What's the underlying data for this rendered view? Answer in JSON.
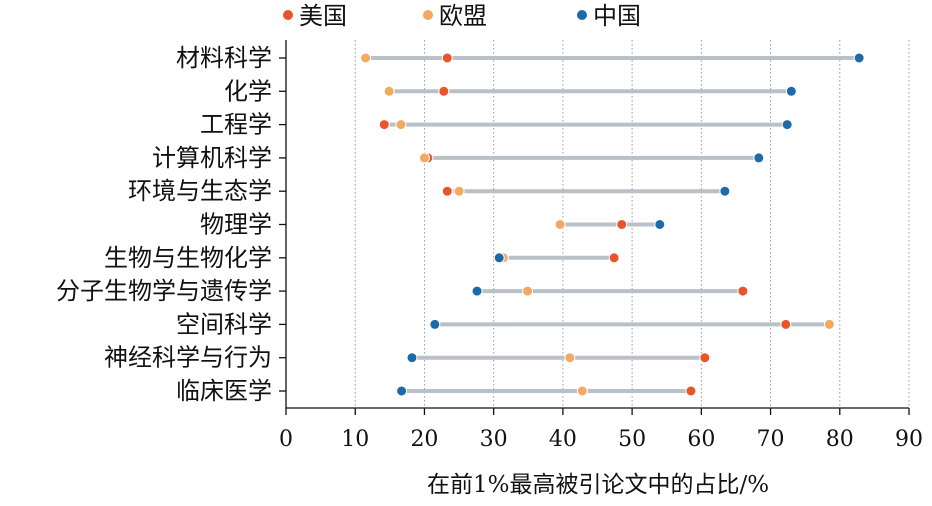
{
  "chart_data": {
    "type": "dumbbell",
    "xlabel": "在前1%最高被引论文中的占比/%",
    "ylabel": "",
    "xlim": [
      0,
      90
    ],
    "xticks": [
      0,
      10,
      20,
      30,
      40,
      50,
      60,
      70,
      80,
      90
    ],
    "grid": "vertical dotted",
    "legend_position": "top",
    "categories": [
      "材料科学",
      "化学",
      "工程学",
      "计算机科学",
      "环境与生态学",
      "物理学",
      "生物与生物化学",
      "分子生物学与遗传学",
      "空间科学",
      "神经科学与行为",
      "临床医学"
    ],
    "series": [
      {
        "name": "美国",
        "color": "#e8552a",
        "values": [
          23.3,
          22.8,
          14.2,
          20.5,
          23.3,
          48.5,
          47.4,
          66.0,
          72.2,
          60.5,
          58.5
        ]
      },
      {
        "name": "欧盟",
        "color": "#f5a862",
        "values": [
          11.5,
          14.9,
          16.6,
          20.0,
          25.0,
          39.6,
          31.4,
          34.9,
          78.5,
          41.0,
          42.8
        ]
      },
      {
        "name": "中国",
        "color": "#1d6aa8",
        "values": [
          82.8,
          73.0,
          72.4,
          68.3,
          63.4,
          54.0,
          30.8,
          27.6,
          21.5,
          18.2,
          16.7
        ]
      }
    ]
  }
}
